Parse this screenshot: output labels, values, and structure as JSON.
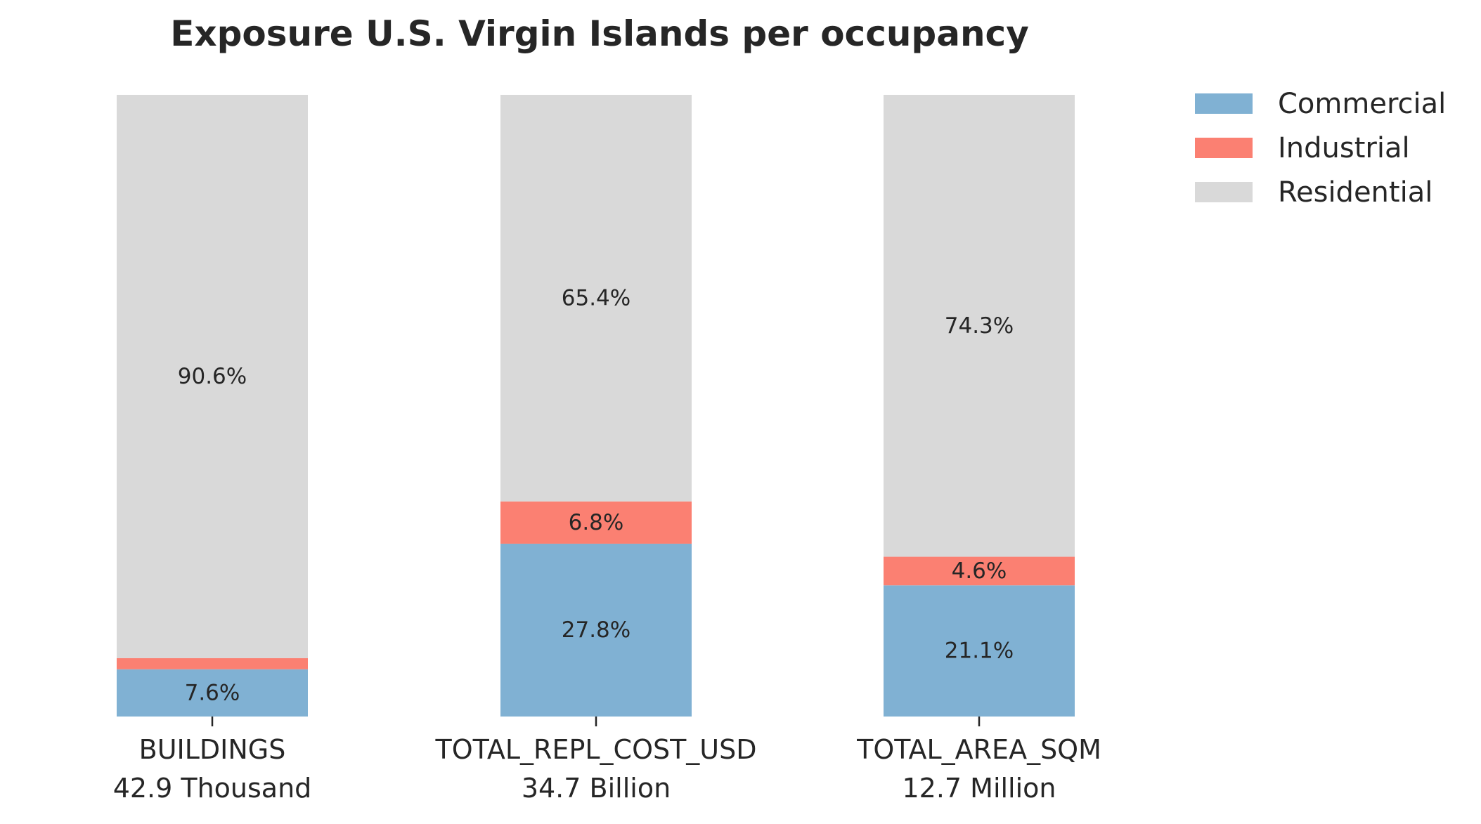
{
  "chart_data": {
    "type": "bar",
    "stacked": true,
    "title": "Exposure U.S. Virgin Islands per occupancy",
    "xlabel": "",
    "ylabel": "",
    "ylim": [
      0,
      100
    ],
    "grid": false,
    "legend_position": "top-right",
    "categories": [
      {
        "name": "BUILDINGS",
        "total": "42.9 Thousand"
      },
      {
        "name": "TOTAL_REPL_COST_USD",
        "total": "34.7 Billion"
      },
      {
        "name": "TOTAL_AREA_SQM",
        "total": "12.7 Million"
      }
    ],
    "series": [
      {
        "name": "Commercial",
        "color": "#80b1d3",
        "values": [
          7.6,
          27.8,
          21.1
        ],
        "labels": [
          "7.6%",
          "27.8%",
          "21.1%"
        ]
      },
      {
        "name": "Industrial",
        "color": "#fb8072",
        "values": [
          1.8,
          6.8,
          4.6
        ],
        "labels": [
          "",
          "6.8%",
          "4.6%"
        ]
      },
      {
        "name": "Residential",
        "color": "#d9d9d9",
        "values": [
          90.6,
          65.4,
          74.3
        ],
        "labels": [
          "90.6%",
          "65.4%",
          "74.3%"
        ]
      }
    ]
  }
}
